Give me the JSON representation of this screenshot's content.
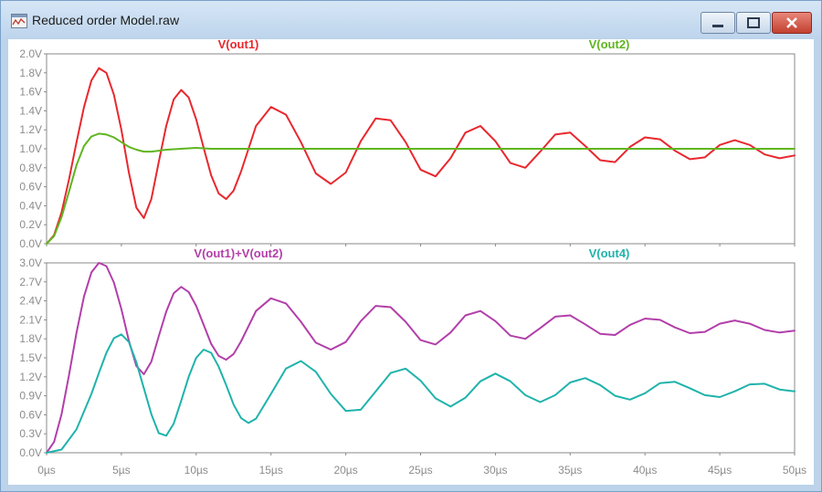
{
  "window": {
    "title": "Reduced order Model.raw",
    "icon": "waveform-viewer-icon",
    "controls": [
      "minimize-icon",
      "maximize-icon",
      "close-icon"
    ]
  },
  "colors": {
    "out1": "#e8282e",
    "out2": "#5fb520",
    "sum": "#b23fa9",
    "out4": "#1fb3ab",
    "axis_text": "#8c8c8c",
    "grid_frame": "#888888"
  },
  "chart_data": [
    {
      "type": "line",
      "title": "",
      "xlabel": "",
      "ylabel": "",
      "x_unit": "µs",
      "xlim": [
        0,
        50
      ],
      "ylim": [
        0,
        2.0
      ],
      "y_ticks": [
        0.0,
        0.2,
        0.4,
        0.6,
        0.8,
        1.0,
        1.2,
        1.4,
        1.6,
        1.8,
        2.0
      ],
      "y_tick_labels": [
        "0.0V",
        "0.2V",
        "0.4V",
        "0.6V",
        "0.8V",
        "1.0V",
        "1.2V",
        "1.4V",
        "1.6V",
        "1.8V",
        "2.0V"
      ],
      "series": [
        {
          "name": "V(out1)",
          "color": "#e8282e",
          "x": [
            0,
            0.5,
            1,
            1.5,
            2,
            2.5,
            3,
            3.5,
            4,
            4.5,
            5,
            5.5,
            6,
            6.5,
            7,
            7.5,
            8,
            8.5,
            9,
            9.5,
            10,
            10.5,
            11,
            11.5,
            12,
            12.5,
            13,
            14,
            15,
            16,
            17,
            18,
            19,
            20,
            21,
            22,
            23,
            24,
            25,
            26,
            27,
            28,
            29,
            30,
            31,
            32,
            33,
            34,
            35,
            36,
            37,
            38,
            39,
            40,
            41,
            42,
            43,
            44,
            45,
            46,
            47,
            48,
            49,
            50
          ],
          "y": [
            0.0,
            0.09,
            0.33,
            0.68,
            1.07,
            1.44,
            1.72,
            1.85,
            1.8,
            1.57,
            1.2,
            0.75,
            0.38,
            0.27,
            0.47,
            0.86,
            1.24,
            1.52,
            1.62,
            1.54,
            1.31,
            1.01,
            0.72,
            0.53,
            0.47,
            0.56,
            0.76,
            1.24,
            1.44,
            1.36,
            1.07,
            0.74,
            0.63,
            0.75,
            1.08,
            1.32,
            1.3,
            1.07,
            0.78,
            0.71,
            0.9,
            1.17,
            1.24,
            1.08,
            0.85,
            0.8,
            0.97,
            1.15,
            1.17,
            1.03,
            0.88,
            0.86,
            1.02,
            1.12,
            1.1,
            0.98,
            0.89,
            0.91,
            1.04,
            1.09,
            1.04,
            0.94,
            0.9,
            0.93
          ]
        },
        {
          "name": "V(out2)",
          "color": "#5fb520",
          "x": [
            0,
            0.5,
            1,
            1.5,
            2,
            2.5,
            3,
            3.5,
            4,
            4.5,
            5,
            5.5,
            6,
            6.5,
            7,
            7.5,
            8,
            9,
            10,
            11,
            12,
            13,
            15,
            20,
            30,
            40,
            50
          ],
          "y": [
            0.0,
            0.08,
            0.28,
            0.55,
            0.83,
            1.03,
            1.13,
            1.16,
            1.15,
            1.12,
            1.07,
            1.02,
            0.99,
            0.97,
            0.97,
            0.98,
            0.99,
            1.0,
            1.01,
            1.0,
            1.0,
            1.0,
            1.0,
            1.0,
            1.0,
            1.0,
            1.0
          ]
        }
      ]
    },
    {
      "type": "line",
      "title": "",
      "xlabel": "",
      "ylabel": "",
      "x_unit": "µs",
      "xlim": [
        0,
        50
      ],
      "ylim": [
        0,
        3.0
      ],
      "x_ticks": [
        0,
        5,
        10,
        15,
        20,
        25,
        30,
        35,
        40,
        45,
        50
      ],
      "x_tick_labels": [
        "0µs",
        "5µs",
        "10µs",
        "15µs",
        "20µs",
        "25µs",
        "30µs",
        "35µs",
        "40µs",
        "45µs",
        "50µs"
      ],
      "y_ticks": [
        0.0,
        0.3,
        0.6,
        0.9,
        1.2,
        1.5,
        1.8,
        2.1,
        2.4,
        2.7,
        3.0
      ],
      "y_tick_labels": [
        "0.0V",
        "0.3V",
        "0.6V",
        "0.9V",
        "1.2V",
        "1.5V",
        "1.8V",
        "2.1V",
        "2.4V",
        "2.7V",
        "3.0V"
      ],
      "series": [
        {
          "name": "V(out1)+V(out2)",
          "color": "#b23fa9",
          "x": [
            0,
            0.5,
            1,
            1.5,
            2,
            2.5,
            3,
            3.5,
            4,
            4.5,
            5,
            5.5,
            6,
            6.5,
            7,
            7.5,
            8,
            8.5,
            9,
            9.5,
            10,
            10.5,
            11,
            11.5,
            12,
            12.5,
            13,
            14,
            15,
            16,
            17,
            18,
            19,
            20,
            21,
            22,
            23,
            24,
            25,
            26,
            27,
            28,
            29,
            30,
            31,
            32,
            33,
            34,
            35,
            36,
            37,
            38,
            39,
            40,
            41,
            42,
            43,
            44,
            45,
            46,
            47,
            48,
            49,
            50
          ],
          "y": [
            0.0,
            0.17,
            0.61,
            1.23,
            1.9,
            2.47,
            2.85,
            3.0,
            2.95,
            2.69,
            2.27,
            1.77,
            1.37,
            1.24,
            1.44,
            1.84,
            2.23,
            2.52,
            2.62,
            2.54,
            2.32,
            2.02,
            1.72,
            1.53,
            1.47,
            1.56,
            1.76,
            2.24,
            2.44,
            2.36,
            2.07,
            1.74,
            1.63,
            1.75,
            2.08,
            2.32,
            2.3,
            2.07,
            1.78,
            1.71,
            1.9,
            2.17,
            2.24,
            2.08,
            1.85,
            1.8,
            1.97,
            2.15,
            2.17,
            2.03,
            1.88,
            1.86,
            2.02,
            2.12,
            2.1,
            1.98,
            1.89,
            1.91,
            2.04,
            2.09,
            2.04,
            1.94,
            1.9,
            1.93
          ]
        },
        {
          "name": "V(out4)",
          "color": "#1fb3ab",
          "x": [
            0,
            1,
            2,
            3,
            3.5,
            4,
            4.5,
            5,
            5.5,
            6,
            6.5,
            7,
            7.5,
            8,
            8.5,
            9,
            9.5,
            10,
            10.5,
            11,
            11.5,
            12,
            12.5,
            13,
            13.5,
            14,
            15,
            16,
            17,
            18,
            19,
            20,
            21,
            22,
            23,
            24,
            25,
            26,
            27,
            28,
            29,
            30,
            31,
            32,
            33,
            34,
            35,
            36,
            37,
            38,
            39,
            40,
            41,
            42,
            43,
            44,
            45,
            46,
            47,
            48,
            49,
            50
          ],
          "y": [
            0.0,
            0.05,
            0.37,
            0.93,
            1.26,
            1.58,
            1.81,
            1.87,
            1.75,
            1.43,
            1.02,
            0.61,
            0.31,
            0.27,
            0.46,
            0.82,
            1.2,
            1.5,
            1.63,
            1.58,
            1.36,
            1.07,
            0.76,
            0.55,
            0.47,
            0.54,
            0.93,
            1.33,
            1.45,
            1.28,
            0.93,
            0.66,
            0.68,
            0.97,
            1.26,
            1.33,
            1.14,
            0.86,
            0.73,
            0.87,
            1.13,
            1.25,
            1.13,
            0.91,
            0.8,
            0.91,
            1.11,
            1.18,
            1.07,
            0.9,
            0.84,
            0.94,
            1.1,
            1.12,
            1.02,
            0.91,
            0.88,
            0.97,
            1.08,
            1.09,
            1.0,
            0.97
          ]
        }
      ]
    }
  ]
}
